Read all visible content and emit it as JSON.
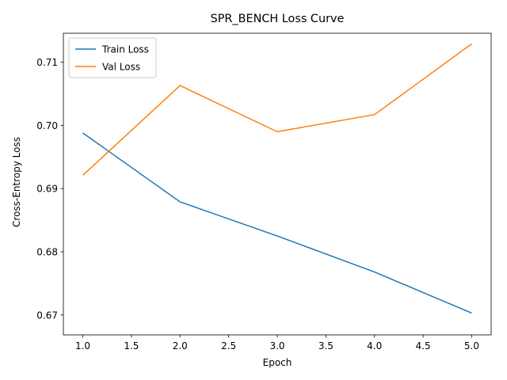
{
  "chart_data": {
    "type": "line",
    "title": "SPR_BENCH Loss Curve",
    "xlabel": "Epoch",
    "ylabel": "Cross-Entropy Loss",
    "x": [
      1,
      2,
      3,
      4,
      5
    ],
    "series": [
      {
        "name": "Train Loss",
        "color": "#1f77b4",
        "values": [
          0.6988,
          0.6879,
          0.6825,
          0.6768,
          0.6703
        ]
      },
      {
        "name": "Val Loss",
        "color": "#ff7f0e",
        "values": [
          0.6921,
          0.7063,
          0.699,
          0.7017,
          0.7129
        ]
      }
    ],
    "xlim": [
      0.8,
      5.2
    ],
    "ylim": [
      0.66685,
      0.71458
    ],
    "xticks": [
      1.0,
      1.5,
      2.0,
      2.5,
      3.0,
      3.5,
      4.0,
      4.5,
      5.0
    ],
    "xtick_labels": [
      "1.0",
      "1.5",
      "2.0",
      "2.5",
      "3.0",
      "3.5",
      "4.0",
      "4.5",
      "5.0"
    ],
    "yticks": [
      0.67,
      0.68,
      0.69,
      0.7,
      0.71
    ],
    "ytick_labels": [
      "0.67",
      "0.68",
      "0.69",
      "0.70",
      "0.71"
    ],
    "legend": "top-left",
    "grid": false
  }
}
